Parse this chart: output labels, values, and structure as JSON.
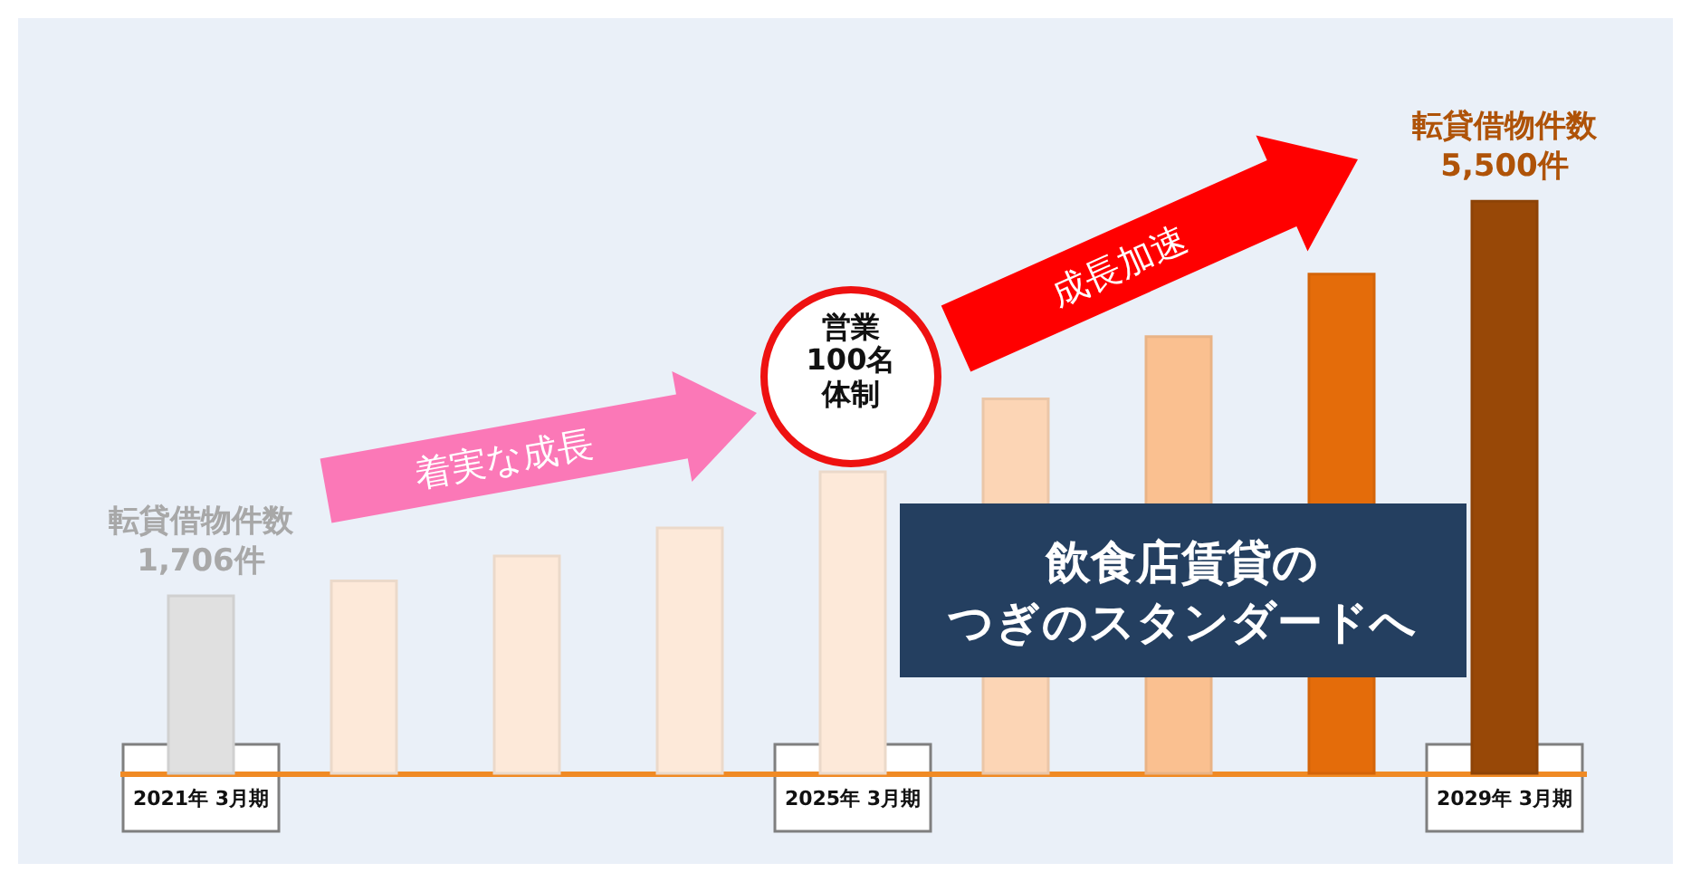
{
  "chart_data": {
    "type": "bar",
    "categories": [
      "2021年\n3月期",
      null,
      null,
      null,
      "2025年\n3月期",
      null,
      null,
      null,
      "2029年\n3月期"
    ],
    "values": [
      1706,
      1850,
      2090,
      2360,
      2900,
      3600,
      4200,
      4800,
      5500
    ],
    "colors": [
      "#e0e0e0",
      "#fde9d9",
      "#fde9d9",
      "#fde9d9",
      "#fde9d9",
      "#fcd5b5",
      "#fac090",
      "#e46c0a",
      "#984807"
    ],
    "value_labels": [
      "転貸借物件数\n1,706件",
      null,
      null,
      null,
      null,
      null,
      null,
      null,
      "転貸借物件数\n5,500件"
    ],
    "annotations": [
      "着実な成長",
      "営業100名体制",
      "成長加速",
      "飲食店賃貸の",
      "つぎのスタンダードへ"
    ],
    "grid": false
  }
}
